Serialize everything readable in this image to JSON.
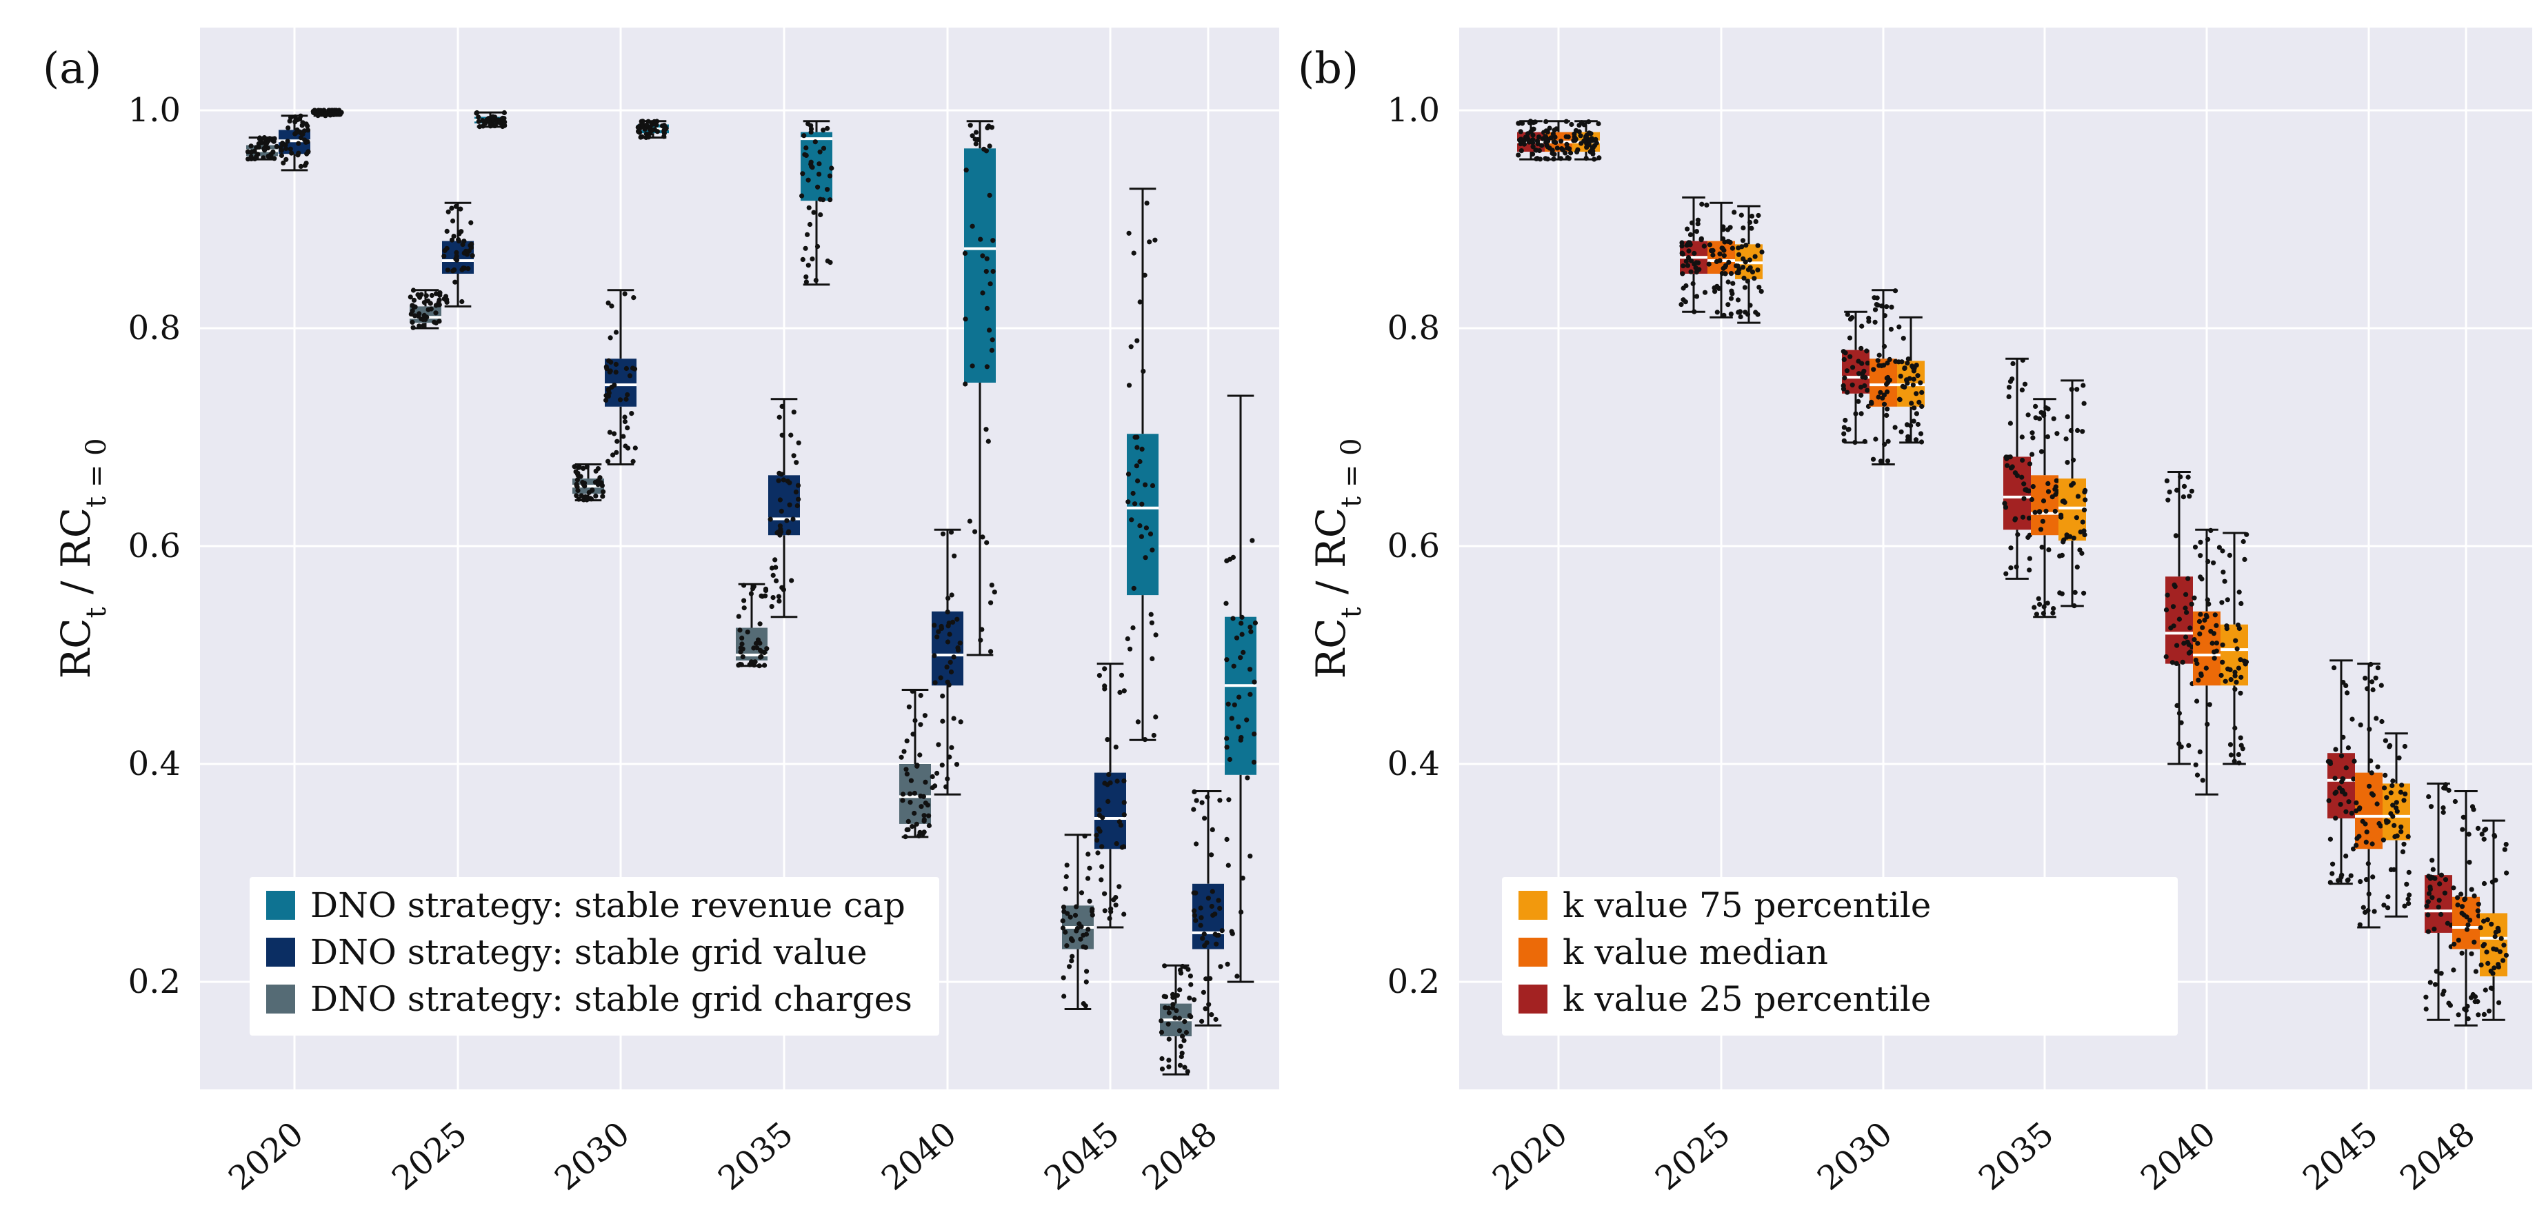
{
  "colors": {
    "plot_background": "#e9e9f2",
    "grid": "#ffffff",
    "point": "#111111",
    "median": "#ffffff",
    "whisker": "#111111",
    "legend_background": "#ffffff"
  },
  "chart_data": [
    {
      "panel": "(a)",
      "type": "box",
      "ylabel_main": "RC",
      "ylabel_sub1": "t",
      "ylabel_mid": " / RC",
      "ylabel_sub2": "t = 0",
      "ylim": [
        0.08,
        1.05
      ],
      "yticks": [
        0.2,
        0.4,
        0.6,
        0.8,
        1.0
      ],
      "ytick_labels": [
        "0.2",
        "0.4",
        "0.6",
        "0.8",
        "1.0"
      ],
      "categories": [
        "2020",
        "2025",
        "2030",
        "2035",
        "2040",
        "2045",
        "2048"
      ],
      "category_years": [
        2020,
        2025,
        2030,
        2035,
        2040,
        2045,
        2048
      ],
      "legend_position": "bottom-left",
      "series": [
        {
          "name": "DNO strategy: stable grid charges",
          "color": "#556b75",
          "offset": -1,
          "boxes": [
            {
              "min": 0.955,
              "q1": 0.958,
              "median": 0.963,
              "q3": 0.968,
              "max": 0.975
            },
            {
              "min": 0.8,
              "q1": 0.805,
              "median": 0.81,
              "q3": 0.82,
              "max": 0.835
            },
            {
              "min": 0.642,
              "q1": 0.648,
              "median": 0.655,
              "q3": 0.662,
              "max": 0.675
            },
            {
              "min": 0.49,
              "q1": 0.495,
              "median": 0.5,
              "q3": 0.525,
              "max": 0.565
            },
            {
              "min": 0.333,
              "q1": 0.345,
              "median": 0.37,
              "q3": 0.4,
              "max": 0.468
            },
            {
              "min": 0.175,
              "q1": 0.23,
              "median": 0.25,
              "q3": 0.27,
              "max": 0.335
            },
            {
              "min": 0.115,
              "q1": 0.15,
              "median": 0.165,
              "q3": 0.18,
              "max": 0.215
            }
          ]
        },
        {
          "name": "DNO strategy: stable grid value",
          "color": "#0b2e63",
          "offset": 0,
          "boxes": [
            {
              "min": 0.945,
              "q1": 0.96,
              "median": 0.972,
              "q3": 0.982,
              "max": 0.995
            },
            {
              "min": 0.82,
              "q1": 0.85,
              "median": 0.862,
              "q3": 0.88,
              "max": 0.915
            },
            {
              "min": 0.675,
              "q1": 0.728,
              "median": 0.748,
              "q3": 0.772,
              "max": 0.835
            },
            {
              "min": 0.535,
              "q1": 0.61,
              "median": 0.625,
              "q3": 0.665,
              "max": 0.735
            },
            {
              "min": 0.372,
              "q1": 0.472,
              "median": 0.5,
              "q3": 0.54,
              "max": 0.615
            },
            {
              "min": 0.25,
              "q1": 0.322,
              "median": 0.35,
              "q3": 0.392,
              "max": 0.492
            },
            {
              "min": 0.16,
              "q1": 0.23,
              "median": 0.245,
              "q3": 0.29,
              "max": 0.375
            }
          ]
        },
        {
          "name": "DNO strategy: stable revenue cap",
          "color": "#0e7392",
          "offset": 1,
          "boxes": [
            {
              "min": 0.995,
              "q1": 0.997,
              "median": 0.999,
              "q3": 1.0,
              "max": 1.0
            },
            {
              "min": 0.985,
              "q1": 0.988,
              "median": 0.991,
              "q3": 0.994,
              "max": 0.998
            },
            {
              "min": 0.975,
              "q1": 0.979,
              "median": 0.983,
              "q3": 0.987,
              "max": 0.99
            },
            {
              "min": 0.84,
              "q1": 0.917,
              "median": 0.974,
              "q3": 0.98,
              "max": 0.99
            },
            {
              "min": 0.5,
              "q1": 0.75,
              "median": 0.873,
              "q3": 0.965,
              "max": 0.99
            },
            {
              "min": 0.422,
              "q1": 0.555,
              "median": 0.635,
              "q3": 0.703,
              "max": 0.928
            },
            {
              "min": 0.2,
              "q1": 0.39,
              "median": 0.472,
              "q3": 0.535,
              "max": 0.738
            }
          ]
        }
      ]
    },
    {
      "panel": "(b)",
      "type": "box",
      "ylabel_main": "RC",
      "ylabel_sub1": "t",
      "ylabel_mid": " / RC",
      "ylabel_sub2": "t = 0",
      "ylim": [
        0.08,
        1.05
      ],
      "yticks": [
        0.2,
        0.4,
        0.6,
        0.8,
        1.0
      ],
      "ytick_labels": [
        "0.2",
        "0.4",
        "0.6",
        "0.8",
        "1.0"
      ],
      "categories": [
        "2020",
        "2025",
        "2030",
        "2035",
        "2040",
        "2045",
        "2048"
      ],
      "category_years": [
        2020,
        2025,
        2030,
        2035,
        2040,
        2045,
        2048
      ],
      "legend_position": "bottom-left",
      "series": [
        {
          "name": "k value 25 percentile",
          "color": "#a32222",
          "offset": -1,
          "boxes": [
            {
              "min": 0.955,
              "q1": 0.962,
              "median": 0.971,
              "q3": 0.98,
              "max": 0.99
            },
            {
              "min": 0.815,
              "q1": 0.85,
              "median": 0.865,
              "q3": 0.88,
              "max": 0.92
            },
            {
              "min": 0.695,
              "q1": 0.74,
              "median": 0.755,
              "q3": 0.78,
              "max": 0.815
            },
            {
              "min": 0.57,
              "q1": 0.615,
              "median": 0.645,
              "q3": 0.682,
              "max": 0.772
            },
            {
              "min": 0.4,
              "q1": 0.492,
              "median": 0.52,
              "q3": 0.572,
              "max": 0.668
            },
            {
              "min": 0.29,
              "q1": 0.35,
              "median": 0.385,
              "q3": 0.41,
              "max": 0.495
            },
            {
              "min": 0.165,
              "q1": 0.245,
              "median": 0.265,
              "q3": 0.298,
              "max": 0.382
            }
          ]
        },
        {
          "name": "k value median",
          "color": "#ec6a08",
          "offset": 0,
          "boxes": [
            {
              "min": 0.955,
              "q1": 0.962,
              "median": 0.971,
              "q3": 0.98,
              "max": 0.99
            },
            {
              "min": 0.81,
              "q1": 0.85,
              "median": 0.862,
              "q3": 0.88,
              "max": 0.915
            },
            {
              "min": 0.675,
              "q1": 0.728,
              "median": 0.748,
              "q3": 0.772,
              "max": 0.835
            },
            {
              "min": 0.535,
              "q1": 0.61,
              "median": 0.63,
              "q3": 0.665,
              "max": 0.735
            },
            {
              "min": 0.372,
              "q1": 0.472,
              "median": 0.5,
              "q3": 0.54,
              "max": 0.615
            },
            {
              "min": 0.25,
              "q1": 0.322,
              "median": 0.352,
              "q3": 0.392,
              "max": 0.492
            },
            {
              "min": 0.16,
              "q1": 0.23,
              "median": 0.25,
              "q3": 0.278,
              "max": 0.375
            }
          ]
        },
        {
          "name": "k value 75 percentile",
          "color": "#f2990d",
          "offset": 1,
          "boxes": [
            {
              "min": 0.955,
              "q1": 0.962,
              "median": 0.971,
              "q3": 0.98,
              "max": 0.99
            },
            {
              "min": 0.805,
              "q1": 0.845,
              "median": 0.86,
              "q3": 0.877,
              "max": 0.912
            },
            {
              "min": 0.695,
              "q1": 0.728,
              "median": 0.748,
              "q3": 0.77,
              "max": 0.81
            },
            {
              "min": 0.545,
              "q1": 0.605,
              "median": 0.635,
              "q3": 0.662,
              "max": 0.752
            },
            {
              "min": 0.4,
              "q1": 0.472,
              "median": 0.505,
              "q3": 0.528,
              "max": 0.612
            },
            {
              "min": 0.26,
              "q1": 0.33,
              "median": 0.352,
              "q3": 0.382,
              "max": 0.428
            },
            {
              "min": 0.165,
              "q1": 0.205,
              "median": 0.24,
              "q3": 0.263,
              "max": 0.348
            }
          ]
        }
      ]
    }
  ]
}
